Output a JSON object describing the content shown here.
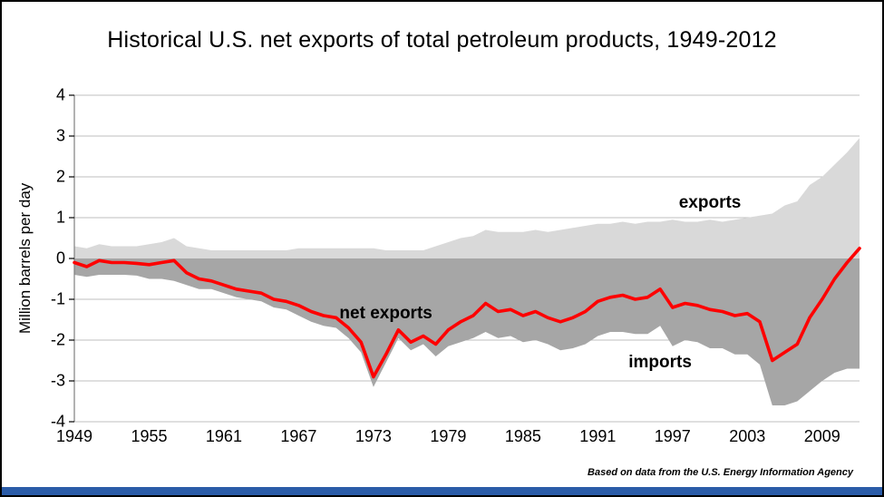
{
  "footer": {
    "text": "Based on data from the U.S. Energy Information Agency"
  },
  "chart_data": {
    "type": "area",
    "title": "Historical U.S. net exports of total petroleum products, 1949-2012",
    "xlabel": "",
    "ylabel": "Million barrels per day",
    "ylim": [
      -4,
      4
    ],
    "yticks": [
      4,
      3,
      2,
      1,
      0,
      -1,
      -2,
      -3,
      -4
    ],
    "xticks": [
      1949,
      1955,
      1961,
      1967,
      1973,
      1979,
      1985,
      1991,
      1997,
      2003,
      2009
    ],
    "grid": true,
    "legend": "none",
    "x": [
      1949,
      1950,
      1951,
      1952,
      1953,
      1954,
      1955,
      1956,
      1957,
      1958,
      1959,
      1960,
      1961,
      1962,
      1963,
      1964,
      1965,
      1966,
      1967,
      1968,
      1969,
      1970,
      1971,
      1972,
      1973,
      1974,
      1975,
      1976,
      1977,
      1978,
      1979,
      1980,
      1981,
      1982,
      1983,
      1984,
      1985,
      1986,
      1987,
      1988,
      1989,
      1990,
      1991,
      1992,
      1993,
      1994,
      1995,
      1996,
      1997,
      1998,
      1999,
      2000,
      2001,
      2002,
      2003,
      2004,
      2005,
      2006,
      2007,
      2008,
      2009,
      2010,
      2011,
      2012
    ],
    "series": [
      {
        "name": "exports",
        "kind": "area",
        "color": "#d9d9d9",
        "values": [
          0.3,
          0.25,
          0.35,
          0.3,
          0.3,
          0.3,
          0.35,
          0.4,
          0.5,
          0.3,
          0.25,
          0.2,
          0.2,
          0.2,
          0.2,
          0.2,
          0.2,
          0.2,
          0.25,
          0.25,
          0.25,
          0.25,
          0.25,
          0.25,
          0.25,
          0.2,
          0.2,
          0.2,
          0.2,
          0.3,
          0.4,
          0.5,
          0.55,
          0.7,
          0.65,
          0.65,
          0.65,
          0.7,
          0.65,
          0.7,
          0.75,
          0.8,
          0.85,
          0.85,
          0.9,
          0.85,
          0.9,
          0.9,
          0.95,
          0.9,
          0.9,
          0.95,
          0.9,
          0.95,
          1.0,
          1.05,
          1.1,
          1.3,
          1.4,
          1.8,
          2.0,
          2.3,
          2.6,
          2.95
        ]
      },
      {
        "name": "imports",
        "kind": "area",
        "color": "#a6a6a6",
        "values": [
          -0.4,
          -0.45,
          -0.4,
          -0.4,
          -0.4,
          -0.42,
          -0.5,
          -0.5,
          -0.55,
          -0.65,
          -0.75,
          -0.75,
          -0.85,
          -0.95,
          -1.0,
          -1.05,
          -1.2,
          -1.25,
          -1.4,
          -1.55,
          -1.65,
          -1.7,
          -1.95,
          -2.3,
          -3.15,
          -2.55,
          -1.95,
          -2.25,
          -2.1,
          -2.4,
          -2.15,
          -2.05,
          -1.95,
          -1.8,
          -1.95,
          -1.9,
          -2.05,
          -2.0,
          -2.1,
          -2.25,
          -2.2,
          -2.1,
          -1.9,
          -1.8,
          -1.8,
          -1.85,
          -1.85,
          -1.65,
          -2.15,
          -2.0,
          -2.05,
          -2.2,
          -2.2,
          -2.35,
          -2.35,
          -2.6,
          -3.6,
          -3.6,
          -3.5,
          -3.25,
          -3.0,
          -2.8,
          -2.7,
          -2.7
        ]
      },
      {
        "name": "net exports",
        "kind": "line",
        "color": "#fe0000",
        "values": [
          -0.1,
          -0.2,
          -0.05,
          -0.1,
          -0.1,
          -0.12,
          -0.15,
          -0.1,
          -0.05,
          -0.35,
          -0.5,
          -0.55,
          -0.65,
          -0.75,
          -0.8,
          -0.85,
          -1.0,
          -1.05,
          -1.15,
          -1.3,
          -1.4,
          -1.45,
          -1.7,
          -2.05,
          -2.9,
          -2.35,
          -1.75,
          -2.05,
          -1.9,
          -2.1,
          -1.75,
          -1.55,
          -1.4,
          -1.1,
          -1.3,
          -1.25,
          -1.4,
          -1.3,
          -1.45,
          -1.55,
          -1.45,
          -1.3,
          -1.05,
          -0.95,
          -0.9,
          -1.0,
          -0.95,
          -0.75,
          -1.2,
          -1.1,
          -1.15,
          -1.25,
          -1.3,
          -1.4,
          -1.35,
          -1.55,
          -2.5,
          -2.3,
          -2.1,
          -1.45,
          -1.0,
          -0.5,
          -0.1,
          0.25
        ]
      }
    ],
    "annotations": [
      {
        "text": "exports",
        "year": 2000,
        "value": 1.35
      },
      {
        "text": "net exports",
        "year": 1974,
        "value": -1.35
      },
      {
        "text": "imports",
        "year": 1996,
        "value": -2.55
      }
    ],
    "colors": {
      "exports_fill": "#d9d9d9",
      "imports_fill": "#a6a6a6",
      "net_line": "#fe0000",
      "grid": "#bfbfbf",
      "axis": "#7f7f7f",
      "accent_bar": "#2b5ca8"
    }
  }
}
